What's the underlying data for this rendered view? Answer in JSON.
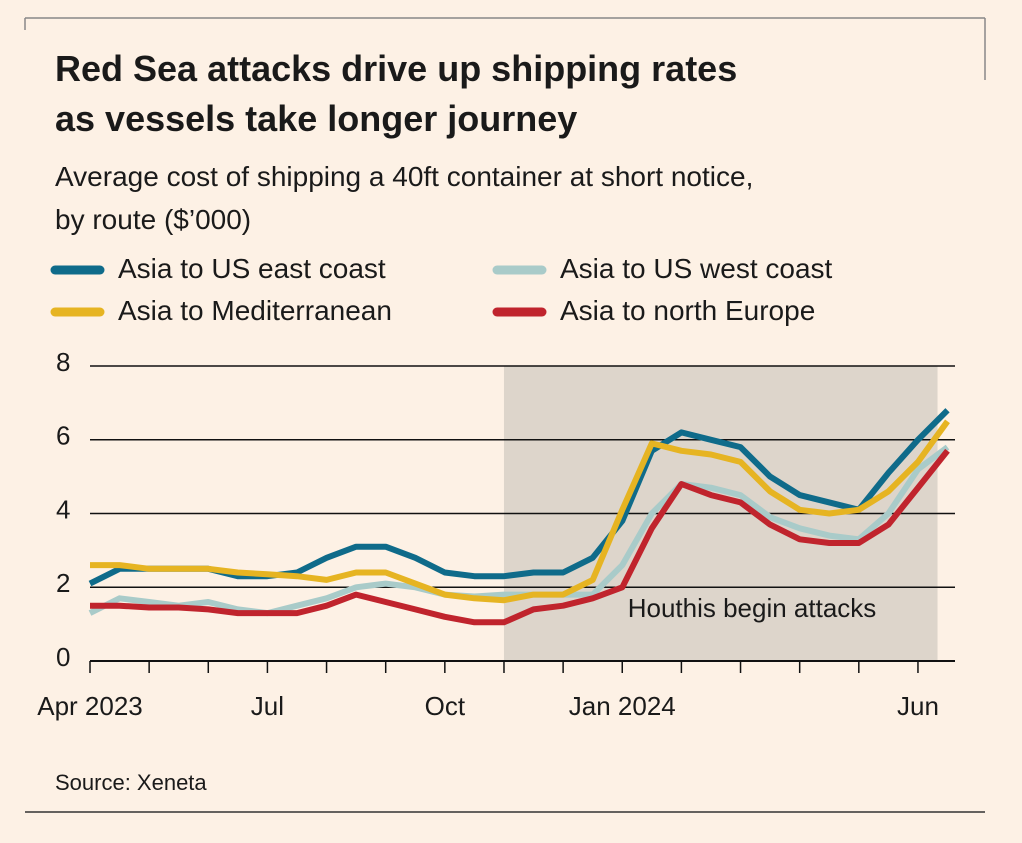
{
  "chart_data": {
    "type": "line",
    "title": "Red Sea attacks drive up shipping rates\nas vessels take longer journey",
    "subtitle": "Average cost of shipping a 40ft container at short notice,\nby route ($’000)",
    "source": "Source: Xeneta",
    "categories": [
      "Apr\n2023",
      null,
      null,
      null,
      null,
      null,
      "Jul",
      null,
      null,
      null,
      null,
      null,
      "Oct",
      null,
      null,
      null,
      null,
      null,
      "Jan\n2024",
      null,
      null,
      null,
      null,
      null,
      null,
      null,
      null,
      null,
      "Jun",
      null
    ],
    "series": [
      {
        "name": "Asia to US east coast",
        "color": "#0f6b8a",
        "values": [
          2.1,
          2.5,
          2.5,
          2.5,
          2.5,
          2.3,
          2.3,
          2.4,
          2.8,
          3.1,
          3.1,
          2.8,
          2.4,
          2.3,
          2.3,
          2.4,
          2.4,
          2.8,
          3.8,
          5.7,
          6.2,
          6.0,
          5.8,
          5.0,
          4.5,
          4.3,
          4.1,
          5.1,
          6.0,
          6.8
        ]
      },
      {
        "name": "Asia to US west coast",
        "color": "#a9cbc9",
        "values": [
          1.3,
          1.7,
          1.6,
          1.5,
          1.6,
          1.4,
          1.3,
          1.5,
          1.7,
          2.0,
          2.1,
          2.0,
          1.8,
          1.75,
          1.8,
          1.8,
          1.8,
          1.8,
          2.6,
          4.0,
          4.8,
          4.7,
          4.5,
          3.9,
          3.6,
          3.4,
          3.3,
          4.0,
          5.2,
          5.8
        ]
      },
      {
        "name": "Asia to Mediterranean",
        "color": "#e6b422",
        "values": [
          2.6,
          2.6,
          2.5,
          2.5,
          2.5,
          2.4,
          2.35,
          2.3,
          2.2,
          2.4,
          2.4,
          2.1,
          1.8,
          1.7,
          1.65,
          1.8,
          1.8,
          2.2,
          4.1,
          5.9,
          5.7,
          5.6,
          5.4,
          4.6,
          4.1,
          4.0,
          4.1,
          4.6,
          5.4,
          6.5
        ]
      },
      {
        "name": "Asia to north Europe",
        "color": "#c0242d",
        "values": [
          1.5,
          1.5,
          1.45,
          1.45,
          1.4,
          1.3,
          1.3,
          1.3,
          1.5,
          1.8,
          1.6,
          1.4,
          1.2,
          1.05,
          1.05,
          1.4,
          1.5,
          1.7,
          2.0,
          3.6,
          4.8,
          4.5,
          4.3,
          3.7,
          3.3,
          3.2,
          3.2,
          3.7,
          4.7,
          5.7
        ]
      }
    ],
    "shaded_region": {
      "from": 14,
      "to": 29,
      "label": "Houthis begin\nattacks",
      "color": "#ddd5cb"
    },
    "ylim": [
      0,
      8
    ],
    "yticks": [
      0,
      2,
      4,
      6,
      8
    ],
    "grid": true
  }
}
